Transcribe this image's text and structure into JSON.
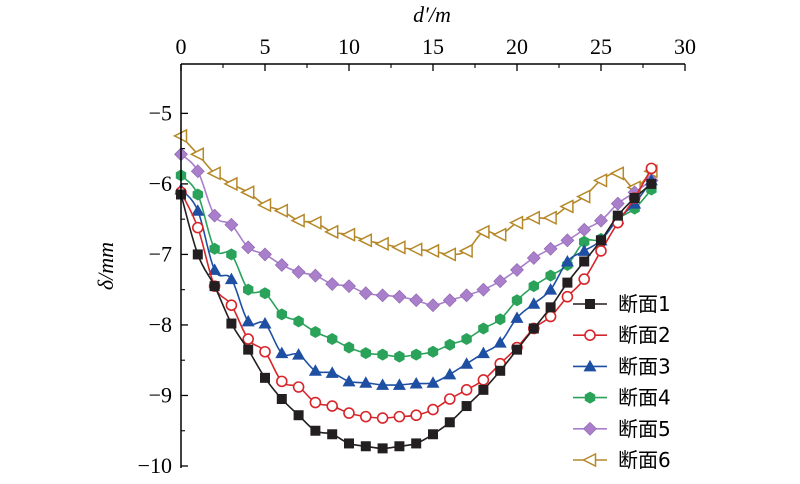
{
  "chart_data": {
    "type": "line",
    "title": "",
    "xlabel": "d′/m",
    "ylabel": "δ/mm",
    "x_axis_position": "top",
    "xlim": [
      0,
      30
    ],
    "ylim": [
      -10,
      -4.3
    ],
    "x_ticks": [
      "0",
      "5",
      "10",
      "15",
      "20",
      "25",
      "30"
    ],
    "y_ticks": [
      "−5",
      "−6",
      "−7",
      "−8",
      "−9",
      "−10"
    ],
    "grid": false,
    "legend_position": "bottom-right",
    "x": [
      0,
      1,
      2,
      3,
      4,
      5,
      6,
      7,
      8,
      9,
      10,
      11,
      12,
      13,
      14,
      15,
      16,
      17,
      18,
      19,
      20,
      21,
      22,
      23,
      24,
      25,
      26,
      27,
      28
    ],
    "series": [
      {
        "name": "断面1",
        "color": "#231f20",
        "marker": "square",
        "values": [
          -6.15,
          -7.0,
          -7.45,
          -7.98,
          -8.35,
          -8.75,
          -9.05,
          -9.28,
          -9.5,
          -9.55,
          -9.68,
          -9.72,
          -9.75,
          -9.72,
          -9.68,
          -9.55,
          -9.38,
          -9.15,
          -8.92,
          -8.65,
          -8.35,
          -8.05,
          -7.75,
          -7.4,
          -7.1,
          -6.8,
          -6.45,
          -6.2,
          -6.0
        ]
      },
      {
        "name": "断面2",
        "color": "#d7262b",
        "marker": "circle-open",
        "values": [
          -6.12,
          -6.62,
          -7.45,
          -7.72,
          -8.2,
          -8.38,
          -8.8,
          -8.88,
          -9.1,
          -9.15,
          -9.25,
          -9.3,
          -9.32,
          -9.3,
          -9.28,
          -9.2,
          -9.05,
          -8.92,
          -8.78,
          -8.55,
          -8.32,
          -8.05,
          -7.88,
          -7.6,
          -7.35,
          -6.95,
          -6.55,
          -6.2,
          -5.78
        ]
      },
      {
        "name": "断面3",
        "color": "#1e4fa3",
        "marker": "triangle",
        "values": [
          -6.08,
          -6.38,
          -7.22,
          -7.35,
          -7.95,
          -7.98,
          -8.4,
          -8.42,
          -8.65,
          -8.68,
          -8.8,
          -8.82,
          -8.85,
          -8.85,
          -8.83,
          -8.82,
          -8.7,
          -8.55,
          -8.4,
          -8.25,
          -7.9,
          -7.7,
          -7.5,
          -7.1,
          -6.95,
          -6.8,
          -6.5,
          -6.28,
          -5.95
        ]
      },
      {
        "name": "断面4",
        "color": "#2aa25a",
        "marker": "hexagon",
        "values": [
          -5.88,
          -6.15,
          -6.92,
          -7.0,
          -7.5,
          -7.55,
          -7.85,
          -7.95,
          -8.1,
          -8.2,
          -8.32,
          -8.4,
          -8.42,
          -8.45,
          -8.42,
          -8.38,
          -8.28,
          -8.2,
          -8.05,
          -7.92,
          -7.65,
          -7.45,
          -7.3,
          -7.15,
          -6.82,
          -6.78,
          -6.5,
          -6.35,
          -6.08
        ]
      },
      {
        "name": "断面5",
        "color": "#a97fcc",
        "marker": "diamond",
        "values": [
          -5.58,
          -5.82,
          -6.45,
          -6.58,
          -6.9,
          -7.0,
          -7.15,
          -7.25,
          -7.3,
          -7.42,
          -7.45,
          -7.55,
          -7.58,
          -7.6,
          -7.65,
          -7.72,
          -7.65,
          -7.58,
          -7.5,
          -7.38,
          -7.22,
          -7.05,
          -6.92,
          -6.8,
          -6.65,
          -6.52,
          -6.28,
          -6.12,
          -5.95
        ]
      },
      {
        "name": "断面6",
        "color": "#b5892a",
        "marker": "triangle-left",
        "values": [
          -5.32,
          -5.58,
          -5.85,
          -6.0,
          -6.12,
          -6.3,
          -6.38,
          -6.52,
          -6.55,
          -6.68,
          -6.72,
          -6.8,
          -6.85,
          -6.9,
          -6.93,
          -6.95,
          -7.0,
          -6.95,
          -6.68,
          -6.72,
          -6.55,
          -6.48,
          -6.48,
          -6.32,
          -6.18,
          -5.95,
          -5.85,
          -6.05,
          -5.82
        ]
      }
    ]
  }
}
